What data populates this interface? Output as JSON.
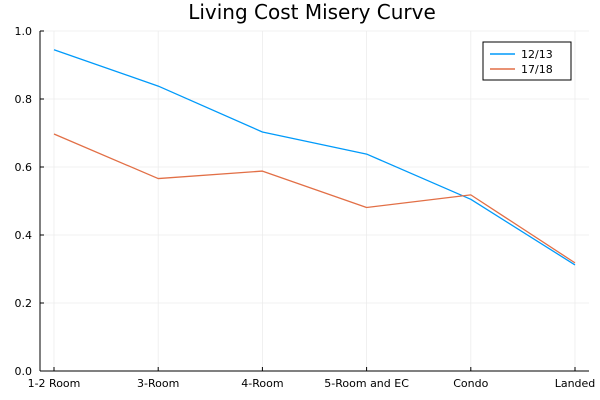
{
  "chart_data": {
    "type": "line",
    "title": "Living Cost Misery Curve",
    "xlabel": "",
    "ylabel": "",
    "categories": [
      "1-2 Room",
      "3-Room",
      "4-Room",
      "5-Room and EC",
      "Condo",
      "Landed"
    ],
    "ylim": [
      0,
      1.0
    ],
    "yticks": [
      "0.0",
      "0.2",
      "0.4",
      "0.6",
      "0.8",
      "1.0"
    ],
    "grid": true,
    "legend_position": "top-right",
    "series": [
      {
        "name": "12/13",
        "color": "#009AFA",
        "values": [
          0.945,
          0.838,
          0.703,
          0.638,
          0.505,
          0.312
        ]
      },
      {
        "name": "17/18",
        "color": "#E26F46",
        "values": [
          0.697,
          0.566,
          0.588,
          0.481,
          0.518,
          0.318
        ]
      }
    ]
  }
}
